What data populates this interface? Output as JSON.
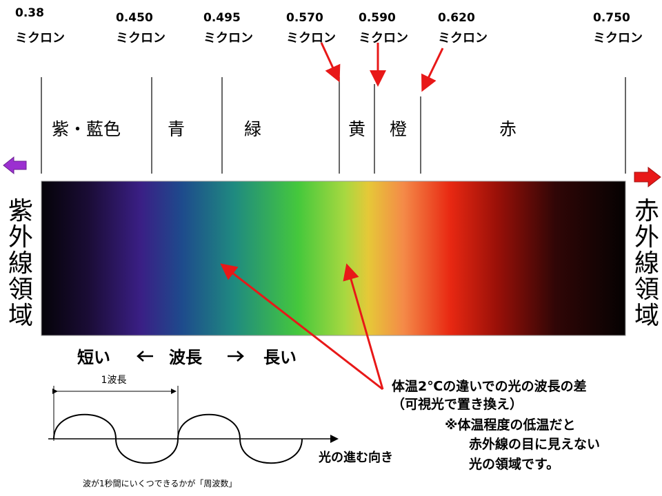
{
  "markers": [
    {
      "value": "0.38",
      "unit": "ミクロン"
    },
    {
      "value": "0.450",
      "unit": "ミクロン"
    },
    {
      "value": "0.495",
      "unit": "ミクロン"
    },
    {
      "value": "0.570",
      "unit": "ミクロン"
    },
    {
      "value": "0.590",
      "unit": "ミクロン"
    },
    {
      "value": "0.620",
      "unit": "ミクロン"
    },
    {
      "value": "0.750",
      "unit": "ミクロン"
    }
  ],
  "bands": [
    "紫・藍色",
    "青",
    "緑",
    "黄",
    "橙",
    "赤"
  ],
  "left_region": "紫外線領域",
  "right_region": "赤外線領域",
  "wavelength_axis": {
    "short": "短い",
    "label": "波長",
    "long": "長い"
  },
  "wave": {
    "period_label": "1波長",
    "direction": "光の進む向き",
    "caption": "波が1秒間にいくつできるかが「周波数」"
  },
  "annotation": {
    "line1": "体温2℃の違いでの光の波長の差",
    "line2": "（可視光で置き換え）",
    "note1": "※体温程度の低温だと",
    "note2": "赤外線の目に見えない",
    "note3": "光の領域です。"
  }
}
